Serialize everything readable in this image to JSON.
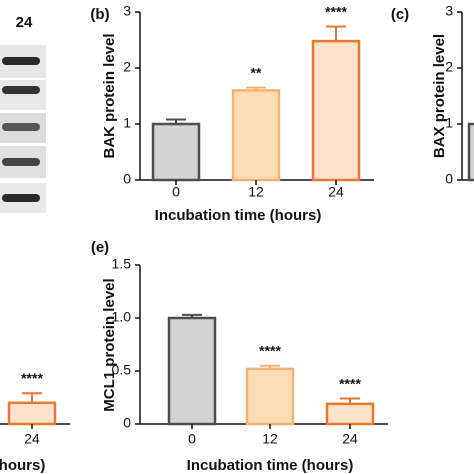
{
  "blot": {
    "label": "24"
  },
  "chart_data": [
    {
      "type": "bar",
      "panel_label": "(b)",
      "ylabel": "BAK protein level",
      "xlabel": "Incubation time (hours)",
      "categories": [
        "0",
        "12",
        "24"
      ],
      "values": [
        1.0,
        1.6,
        2.48
      ],
      "errors": [
        0.08,
        0.05,
        0.26
      ],
      "annotations": [
        null,
        "**",
        "****"
      ],
      "colors": [
        "#d3d3d3",
        "#fddcb5",
        "#fde3cb"
      ],
      "edge_colors": [
        "#4d4d4d",
        "#f2b274",
        "#e8792c"
      ],
      "ylim": [
        0,
        3
      ],
      "yticks": [
        0,
        1,
        2,
        3
      ]
    },
    {
      "type": "bar",
      "panel_label": "(c)",
      "ylabel": "BAX protein level",
      "categories": [
        null
      ],
      "values": [
        1.0
      ],
      "colors": [
        "#d3d3d3"
      ],
      "edge_colors": [
        "#4d4d4d"
      ],
      "ylim": [
        0,
        3
      ],
      "yticks": [
        0,
        1,
        2,
        3
      ]
    },
    {
      "type": "bar",
      "xlabel": "hours)",
      "categories": [
        "24"
      ],
      "values": [
        0.2
      ],
      "errors": [
        0.09
      ],
      "annotations": [
        "****"
      ],
      "colors": [
        "#fde3cb"
      ],
      "edge_colors": [
        "#e8792c"
      ],
      "ylim": [
        0,
        1.5
      ]
    },
    {
      "type": "bar",
      "panel_label": "(e)",
      "ylabel": "MCL1 protein level",
      "xlabel": "Incubation time (hours)",
      "categories": [
        "0",
        "12",
        "24"
      ],
      "values": [
        1.0,
        0.52,
        0.19
      ],
      "errors": [
        0.03,
        0.03,
        0.05
      ],
      "annotations": [
        null,
        "****",
        "****"
      ],
      "colors": [
        "#d3d3d3",
        "#fddcb5",
        "#fde3cb"
      ],
      "edge_colors": [
        "#4d4d4d",
        "#f2b274",
        "#e8792c"
      ],
      "ylim": [
        0,
        1.5
      ],
      "yticks": [
        0,
        0.5,
        {
          "value": 1,
          "label": "1.0"
        },
        1.5
      ]
    }
  ]
}
